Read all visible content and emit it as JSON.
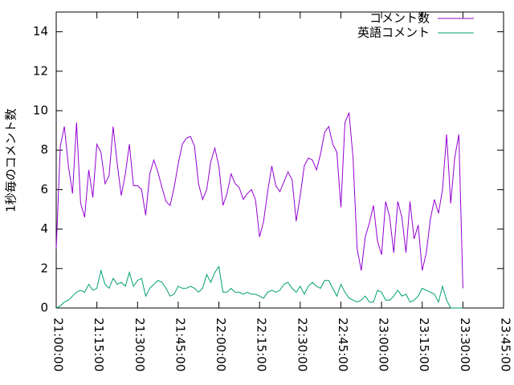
{
  "chart_data": {
    "type": "line",
    "y_label": "1秒毎のコメント数",
    "x": [
      "21:00:00",
      "21:01:30",
      "21:03:00",
      "21:04:30",
      "21:06:00",
      "21:07:30",
      "21:09:00",
      "21:10:30",
      "21:12:00",
      "21:13:30",
      "21:15:00",
      "21:16:30",
      "21:18:00",
      "21:19:30",
      "21:21:00",
      "21:22:30",
      "21:24:00",
      "21:25:30",
      "21:27:00",
      "21:28:30",
      "21:30:00",
      "21:31:30",
      "21:33:00",
      "21:34:30",
      "21:36:00",
      "21:37:30",
      "21:39:00",
      "21:40:30",
      "21:42:00",
      "21:43:30",
      "21:45:00",
      "21:46:30",
      "21:48:00",
      "21:49:30",
      "21:51:00",
      "21:52:30",
      "21:54:00",
      "21:55:30",
      "21:57:00",
      "21:58:30",
      "22:00:00",
      "22:01:30",
      "22:03:00",
      "22:04:30",
      "22:06:00",
      "22:07:30",
      "22:09:00",
      "22:10:30",
      "22:12:00",
      "22:13:30",
      "22:15:00",
      "22:16:30",
      "22:18:00",
      "22:19:30",
      "22:21:00",
      "22:22:30",
      "22:24:00",
      "22:25:30",
      "22:27:00",
      "22:28:30",
      "22:30:00",
      "22:31:30",
      "22:33:00",
      "22:34:30",
      "22:36:00",
      "22:37:30",
      "22:39:00",
      "22:40:30",
      "22:42:00",
      "22:43:30",
      "22:45:00",
      "22:46:30",
      "22:48:00",
      "22:49:30",
      "22:51:00",
      "22:52:30",
      "22:54:00",
      "22:55:30",
      "22:57:00",
      "22:58:30",
      "23:00:00",
      "23:01:30",
      "23:03:00",
      "23:04:30",
      "23:06:00",
      "23:07:30",
      "23:09:00",
      "23:10:30",
      "23:12:00",
      "23:13:30",
      "23:15:00",
      "23:16:30",
      "23:18:00",
      "23:19:30",
      "23:21:00",
      "23:22:30",
      "23:24:00",
      "23:25:30",
      "23:27:00",
      "23:28:30",
      "23:30:00"
    ],
    "series": [
      {
        "name": "コメント数",
        "color": "#9400d3",
        "values": [
          3.0,
          8.2,
          9.2,
          7.2,
          5.8,
          9.4,
          5.3,
          4.6,
          7.0,
          5.6,
          8.3,
          7.9,
          6.3,
          6.7,
          9.2,
          7.3,
          5.7,
          6.8,
          8.3,
          6.2,
          6.2,
          6.0,
          4.7,
          6.8,
          7.5,
          6.9,
          6.1,
          5.4,
          5.2,
          6.1,
          7.3,
          8.3,
          8.6,
          8.7,
          8.2,
          6.3,
          5.5,
          6.0,
          7.4,
          8.1,
          7.2,
          5.2,
          5.8,
          6.8,
          6.3,
          6.1,
          5.5,
          5.8,
          6.0,
          5.5,
          3.6,
          4.4,
          5.9,
          7.2,
          6.2,
          5.9,
          6.4,
          6.9,
          6.5,
          4.4,
          5.7,
          7.2,
          7.6,
          7.5,
          7.0,
          7.8,
          8.9,
          9.2,
          8.3,
          7.9,
          5.1,
          9.4,
          9.9,
          7.6,
          3.0,
          1.9,
          3.6,
          4.3,
          5.2,
          3.4,
          2.7,
          5.4,
          4.6,
          2.8,
          5.4,
          4.6,
          2.8,
          5.4,
          3.5,
          4.2,
          1.9,
          2.8,
          4.5,
          5.5,
          4.8,
          6.0,
          8.8,
          5.3,
          7.6,
          8.8,
          1.0
        ]
      },
      {
        "name": "英語コメント",
        "color": "#009e73",
        "values": [
          0.0,
          0.1,
          0.3,
          0.4,
          0.6,
          0.8,
          0.9,
          0.8,
          1.2,
          0.9,
          1.0,
          1.9,
          1.2,
          1.0,
          1.5,
          1.2,
          1.3,
          1.1,
          1.8,
          1.1,
          1.4,
          1.5,
          0.6,
          1.0,
          1.2,
          1.4,
          1.3,
          1.0,
          0.6,
          0.7,
          1.1,
          1.0,
          1.0,
          1.1,
          1.0,
          0.8,
          1.0,
          1.7,
          1.3,
          1.8,
          2.1,
          0.8,
          0.8,
          1.0,
          0.8,
          0.8,
          0.7,
          0.8,
          0.7,
          0.7,
          0.6,
          0.5,
          0.8,
          0.9,
          0.8,
          0.9,
          1.2,
          1.3,
          1.0,
          0.8,
          1.1,
          0.7,
          1.1,
          1.3,
          1.1,
          1.0,
          1.4,
          1.4,
          1.0,
          0.6,
          1.2,
          0.8,
          0.5,
          0.4,
          0.3,
          0.4,
          0.6,
          0.3,
          0.3,
          0.9,
          0.8,
          0.4,
          0.4,
          0.6,
          0.9,
          0.6,
          0.7,
          0.3,
          0.4,
          0.6,
          1.0,
          0.9,
          0.8,
          0.7,
          0.3,
          1.1,
          0.4,
          0.0,
          0.0,
          0.0,
          0.0
        ]
      }
    ],
    "xlim": [
      "21:00:00",
      "23:45:00"
    ],
    "xticks": [
      "21:00:00",
      "21:15:00",
      "21:30:00",
      "21:45:00",
      "22:00:00",
      "22:15:00",
      "22:30:00",
      "22:45:00",
      "23:00:00",
      "23:15:00",
      "23:30:00",
      "23:45:00"
    ],
    "ylim": [
      0,
      15
    ],
    "yticks": [
      0,
      2,
      4,
      6,
      8,
      10,
      12,
      14
    ],
    "legend": "top-right"
  }
}
